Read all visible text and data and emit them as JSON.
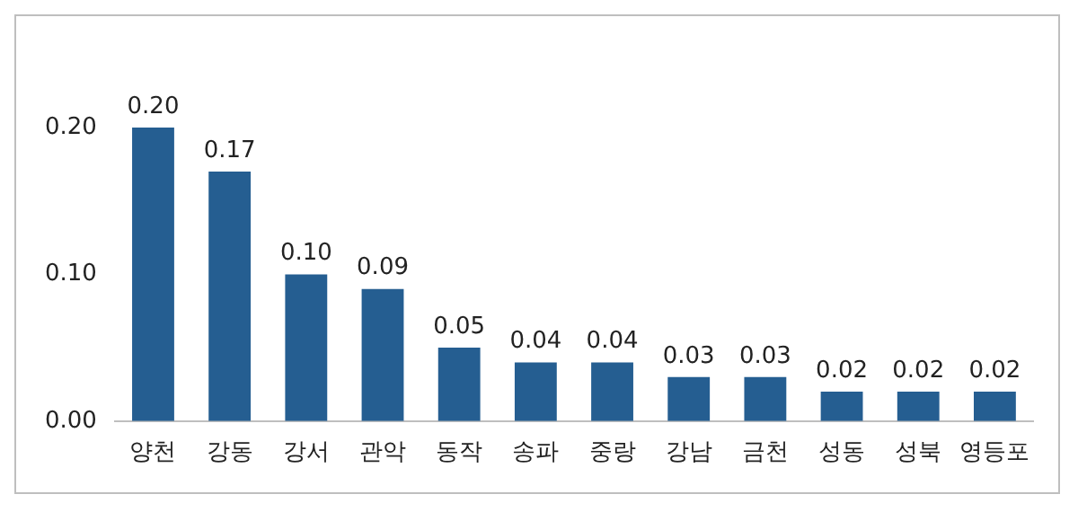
{
  "chart_data": {
    "type": "bar",
    "categories": [
      "양천",
      "강동",
      "강서",
      "관악",
      "동작",
      "송파",
      "중랑",
      "강남",
      "금천",
      "성동",
      "성북",
      "영등포"
    ],
    "values": [
      0.2,
      0.17,
      0.1,
      0.09,
      0.05,
      0.04,
      0.04,
      0.03,
      0.03,
      0.02,
      0.02,
      0.02
    ],
    "value_labels": [
      "0.20",
      "0.17",
      "0.10",
      "0.09",
      "0.05",
      "0.04",
      "0.04",
      "0.03",
      "0.03",
      "0.02",
      "0.02",
      "0.02"
    ],
    "color": "#255e91",
    "ylim": [
      0,
      0.2
    ],
    "yticks": [
      {
        "value": 0,
        "label": "0.00"
      },
      {
        "value": 0.1,
        "label": "0.10"
      },
      {
        "value": 0.2,
        "label": "0.20"
      }
    ],
    "grid": false,
    "legend": false
  }
}
